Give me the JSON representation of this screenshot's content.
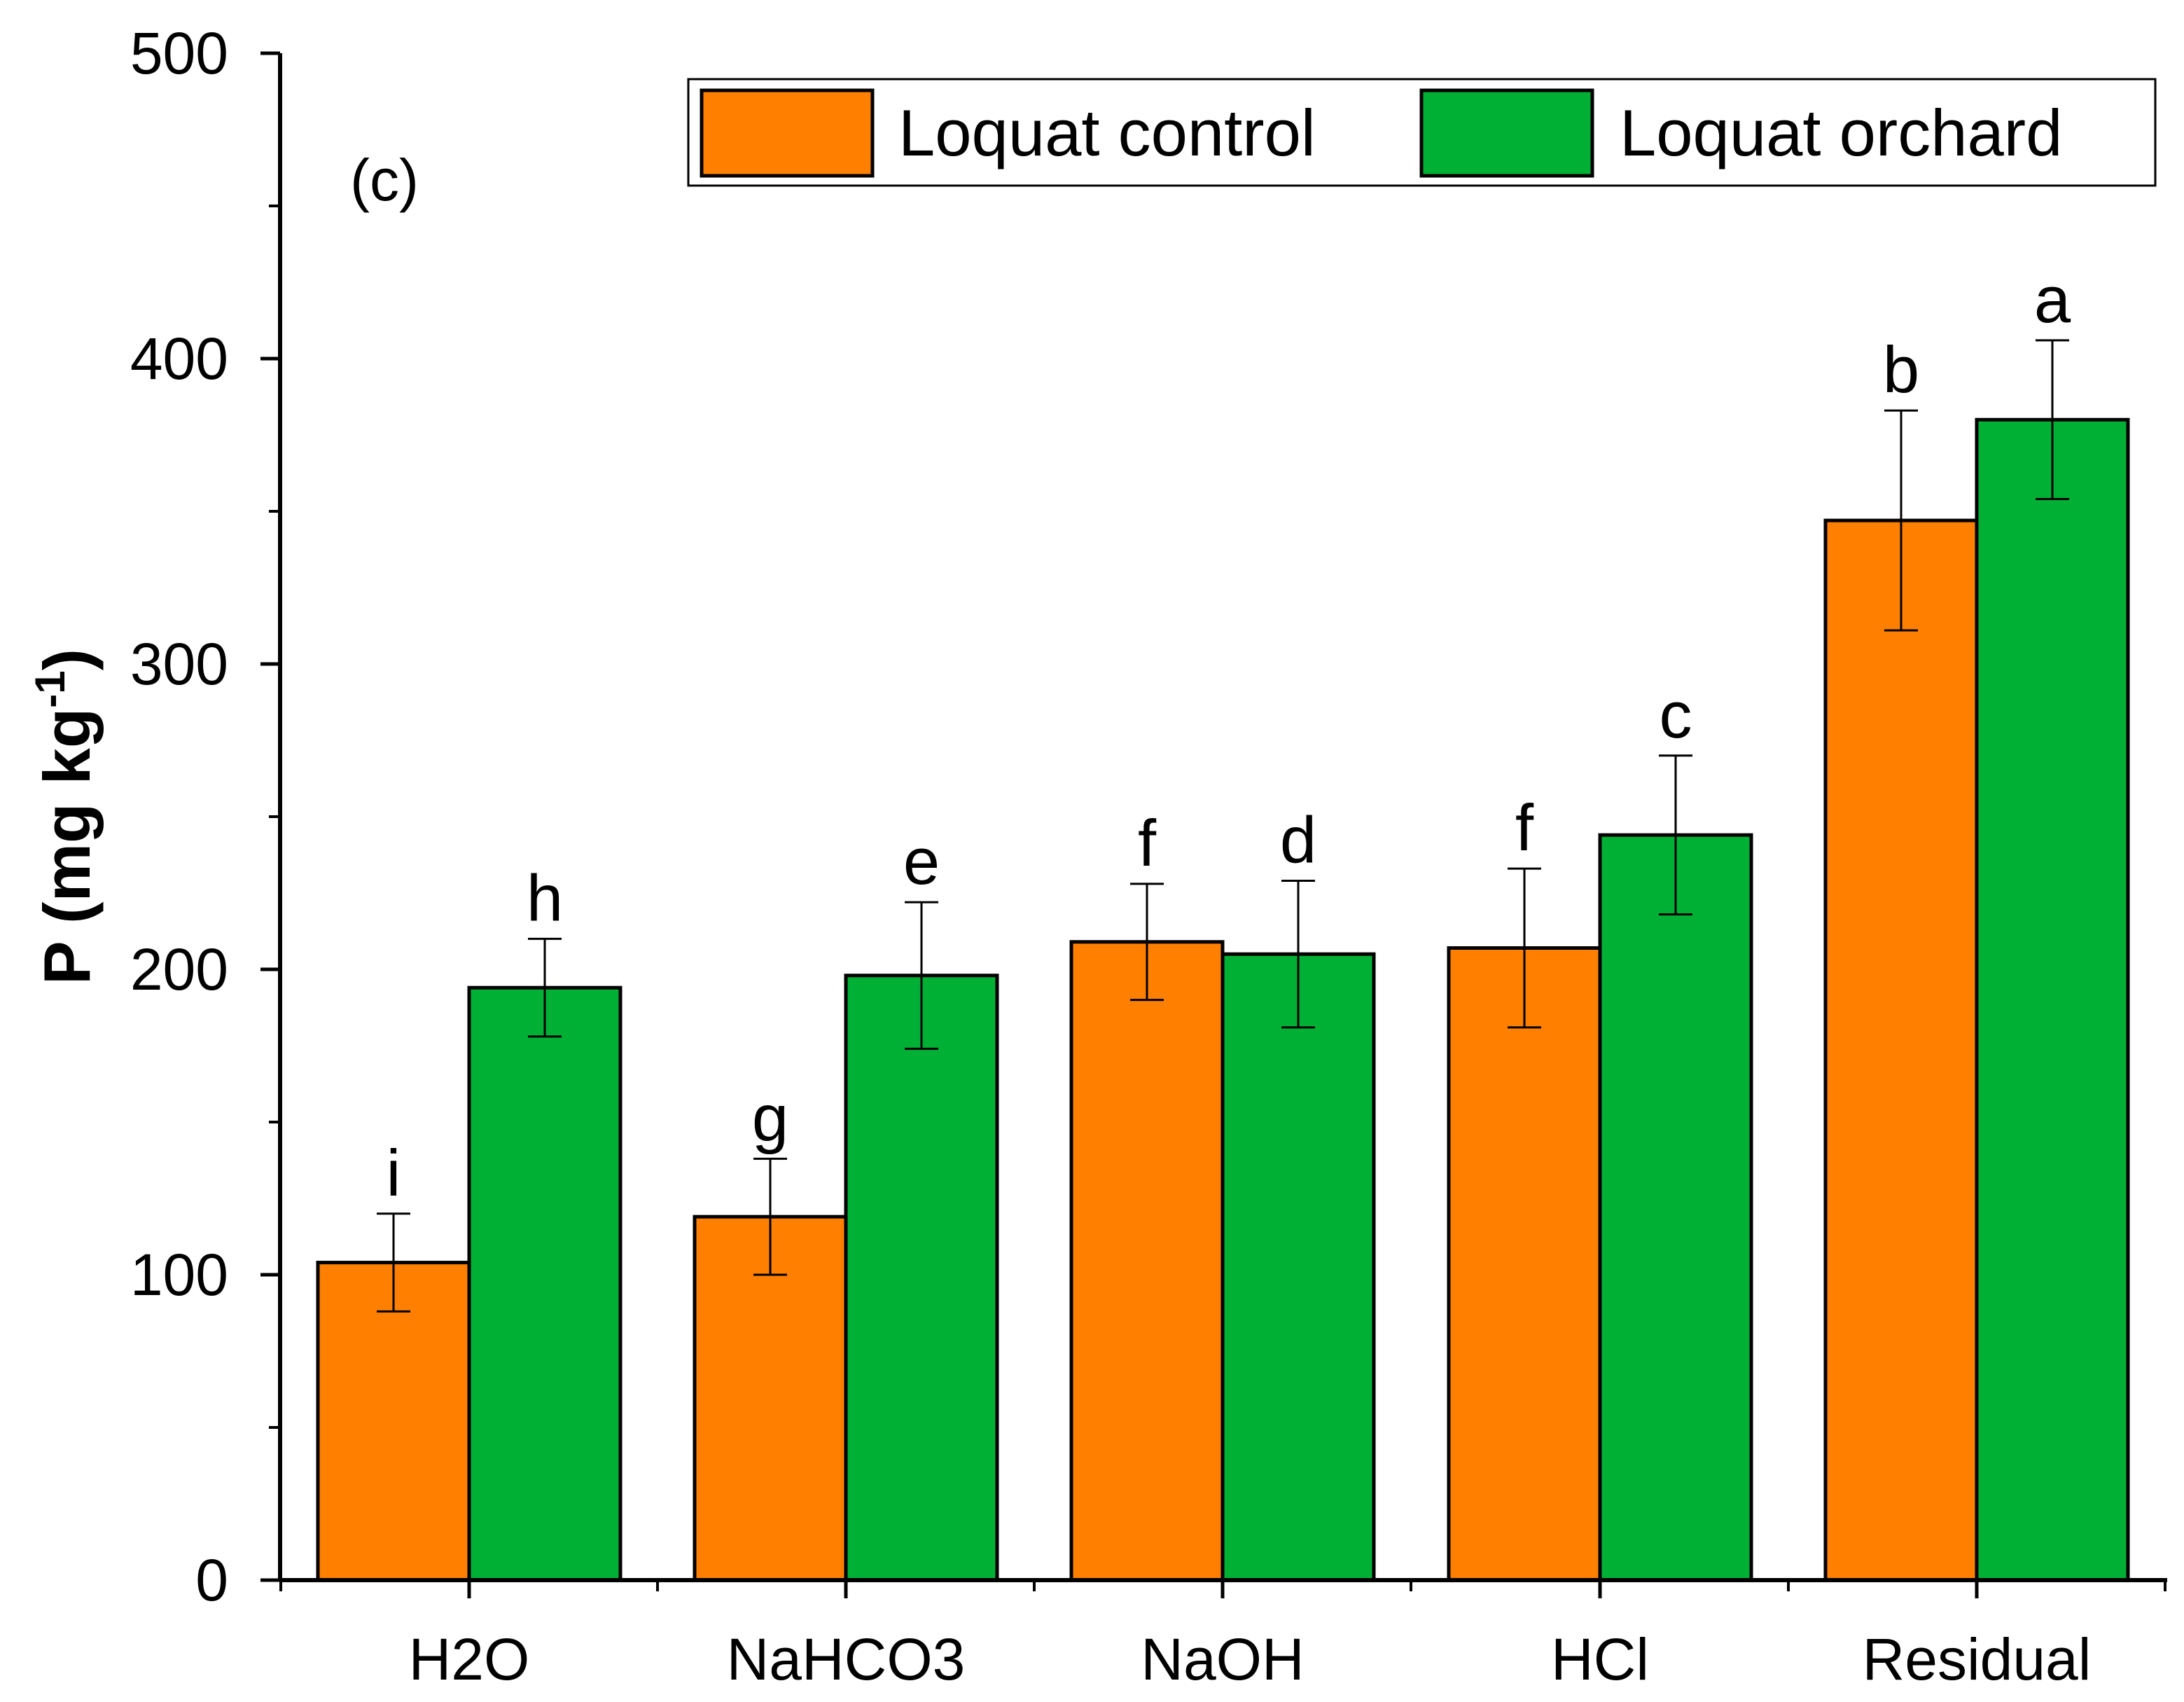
{
  "chart_data": {
    "type": "bar",
    "panel_label": "(c)",
    "title": "",
    "xlabel": "",
    "ylabel": {
      "main": "P (mg kg",
      "superscript": "-1",
      "close": ")"
    },
    "ylim": [
      0,
      500
    ],
    "y_ticks": [
      0,
      100,
      200,
      300,
      400,
      500
    ],
    "y_minor_step": 50,
    "grid": false,
    "legend_position": "top-right",
    "categories": [
      "H2O",
      "NaHCO3",
      "NaOH",
      "HCl",
      "Residual"
    ],
    "series": [
      {
        "name": "Loquat control",
        "color": "#ff8000",
        "values": [
          104,
          119,
          209,
          207,
          347
        ],
        "errors": [
          16,
          19,
          19,
          26,
          36
        ],
        "letters": [
          "i",
          "g",
          "f",
          "f",
          "b"
        ]
      },
      {
        "name": "Loquat orchard",
        "color": "#00b035",
        "values": [
          194,
          198,
          205,
          244,
          380
        ],
        "errors": [
          16,
          24,
          24,
          26,
          26
        ],
        "letters": [
          "h",
          "e",
          "d",
          "c",
          "a"
        ]
      }
    ]
  }
}
